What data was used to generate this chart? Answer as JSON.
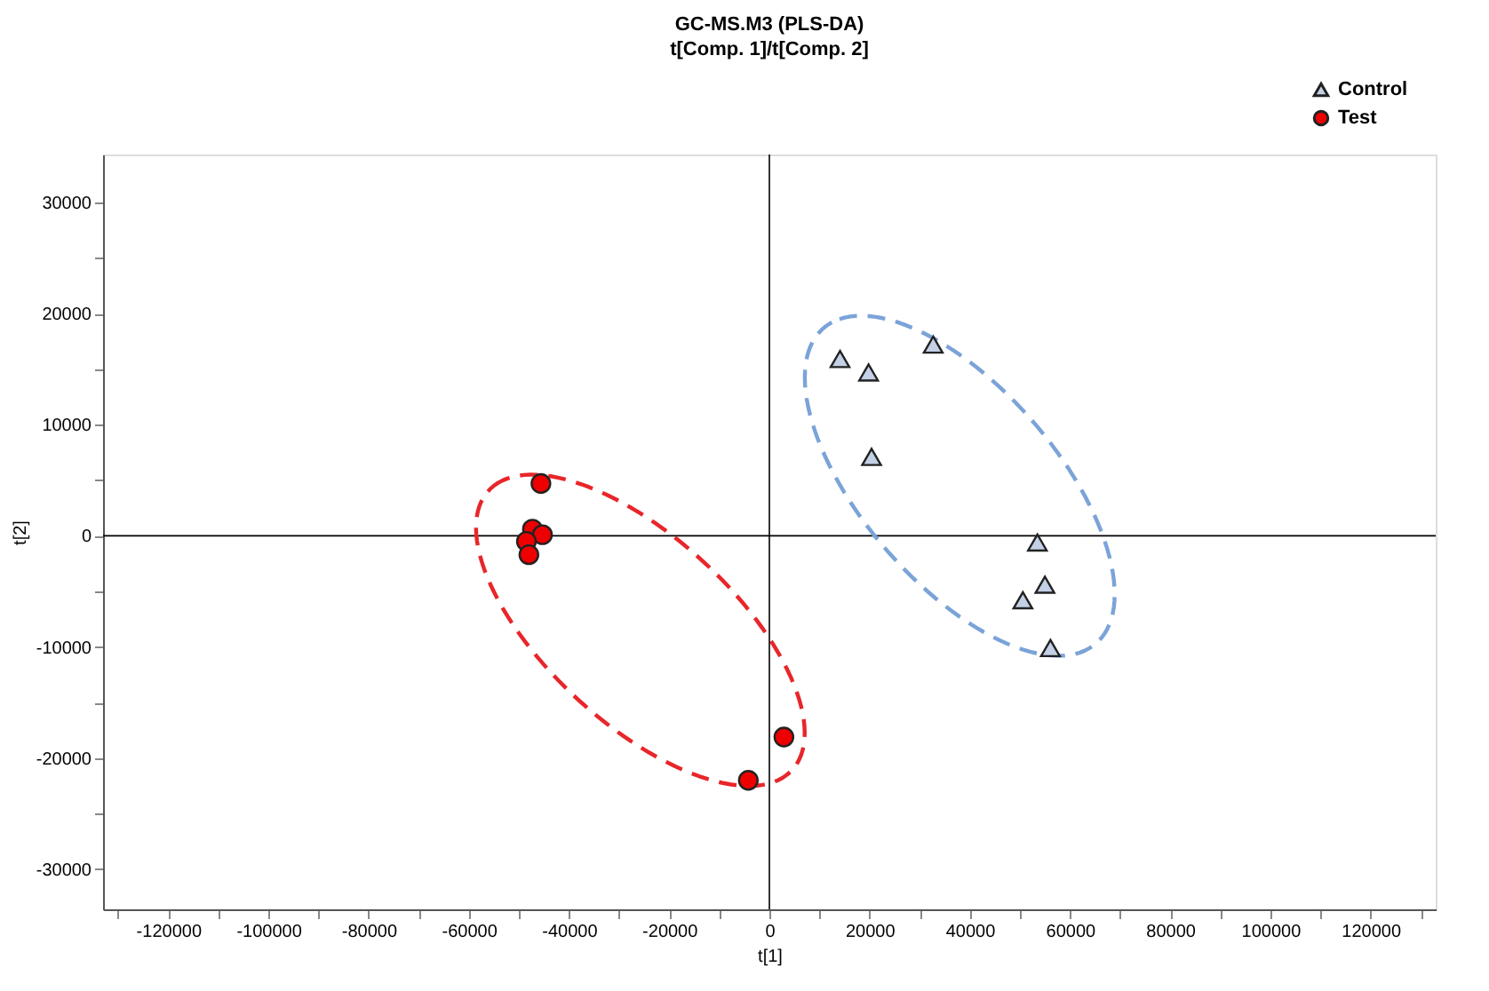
{
  "chart_data": {
    "type": "scatter",
    "title": "GC-MS.M3 (PLS-DA)",
    "subtitle": "t[Comp. 1]/t[Comp. 2]",
    "xlabel": "t[1]",
    "ylabel": "t[2]",
    "xlim": [
      -133000,
      133000
    ],
    "ylim": [
      -33600,
      34300
    ],
    "xticks": [
      {
        "value": -130000,
        "label": null
      },
      -120000,
      {
        "value": -110000,
        "label": null
      },
      -100000,
      {
        "value": -90000,
        "label": null
      },
      -80000,
      {
        "value": -70000,
        "label": null
      },
      -60000,
      {
        "value": -50000,
        "label": null
      },
      -40000,
      {
        "value": -30000,
        "label": null
      },
      -20000,
      {
        "value": -10000,
        "label": null
      },
      0,
      {
        "value": 10000,
        "label": null
      },
      20000,
      {
        "value": 30000,
        "label": null
      },
      40000,
      {
        "value": 50000,
        "label": null
      },
      60000,
      {
        "value": 70000,
        "label": null
      },
      80000,
      {
        "value": 90000,
        "label": null
      },
      100000,
      {
        "value": 110000,
        "label": null
      },
      120000,
      {
        "value": 130000,
        "label": null
      }
    ],
    "yticks": [
      -30000,
      {
        "value": -25000,
        "label": null
      },
      -20000,
      {
        "value": -15000,
        "label": null
      },
      -10000,
      {
        "value": -5000,
        "label": null
      },
      0,
      {
        "value": 5000,
        "label": null
      },
      10000,
      {
        "value": 15000,
        "label": null
      },
      20000,
      {
        "value": 25000,
        "label": null
      },
      30000
    ],
    "grid": false,
    "legend": "top right",
    "ref_lines": [
      {
        "axis": "x",
        "value": 0,
        "color": "#000000"
      },
      {
        "axis": "y",
        "value": 0,
        "color": "#000000"
      }
    ],
    "series": [
      {
        "name": "Control",
        "color": "#c3d0e6",
        "marker": "triangle",
        "x": [
          14100,
          19800,
          32700,
          20400,
          53500,
          55000,
          50600,
          56100
        ],
        "values": [
          15900,
          14700,
          17200,
          7100,
          -600,
          -4400,
          -5800,
          -10100
        ]
      },
      {
        "name": "Test",
        "color": "#ee0000",
        "marker": "circle",
        "x": [
          -45600,
          -47300,
          -45300,
          -48500,
          -48000,
          2900,
          -4200
        ],
        "values": [
          4700,
          600,
          100,
          -500,
          -1700,
          -18100,
          -22000
        ]
      }
    ]
  }
}
